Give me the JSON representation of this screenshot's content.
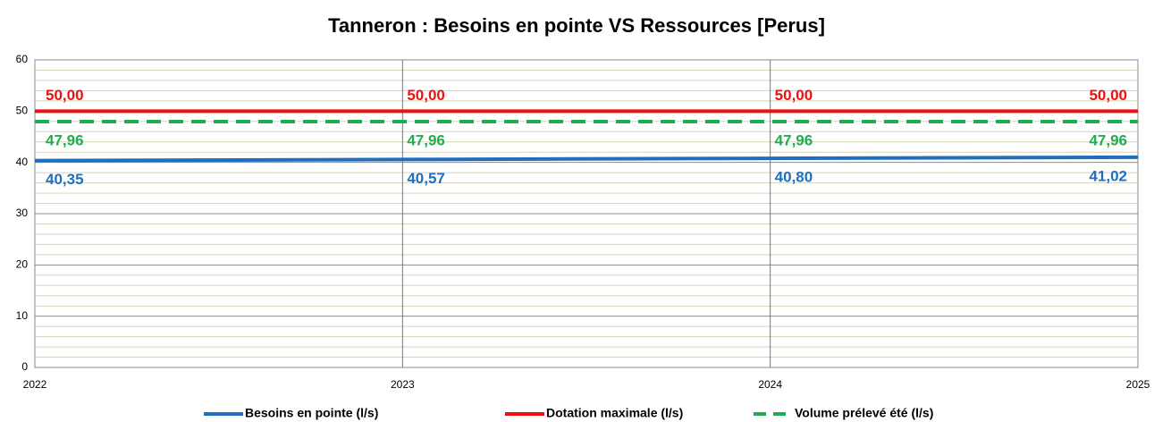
{
  "chart_data": {
    "type": "line",
    "title": "Tanneron : Besoins en pointe VS Ressources [Perus]",
    "x": [
      2022,
      2023,
      2024,
      2025
    ],
    "xlim": [
      2022,
      2025
    ],
    "xticks": [
      2022,
      2023,
      2024,
      2025
    ],
    "ylim": [
      0,
      60
    ],
    "yticks": [
      0,
      10,
      20,
      30,
      40,
      50,
      60
    ],
    "yminorticks": [
      2,
      4,
      6,
      8,
      12,
      14,
      16,
      18,
      22,
      24,
      26,
      28,
      32,
      34,
      36,
      38,
      42,
      44,
      46,
      48,
      52,
      54,
      56,
      58
    ],
    "grid": true,
    "legend": "bottom",
    "series": [
      {
        "name": "Besoins en pointe (l/s)",
        "color": "#1f6fbf",
        "dash": false,
        "label_side": "below",
        "values": [
          40.35,
          40.57,
          40.8,
          41.02
        ],
        "value_labels": [
          "40,35",
          "40,57",
          "40,80",
          "41,02"
        ]
      },
      {
        "name": "Dotation maximale (l/s)",
        "color": "#ee1111",
        "dash": false,
        "label_side": "above",
        "values": [
          50.0,
          50.0,
          50.0,
          50.0
        ],
        "value_labels": [
          "50,00",
          "50,00",
          "50,00",
          "50,00"
        ]
      },
      {
        "name": "Volume prélevé été (l/s)",
        "color": "#1fae4f",
        "dash": true,
        "label_side": "below",
        "values": [
          47.96,
          47.96,
          47.96,
          47.96
        ],
        "value_labels": [
          "47,96",
          "47,96",
          "47,96",
          "47,96"
        ]
      }
    ]
  }
}
